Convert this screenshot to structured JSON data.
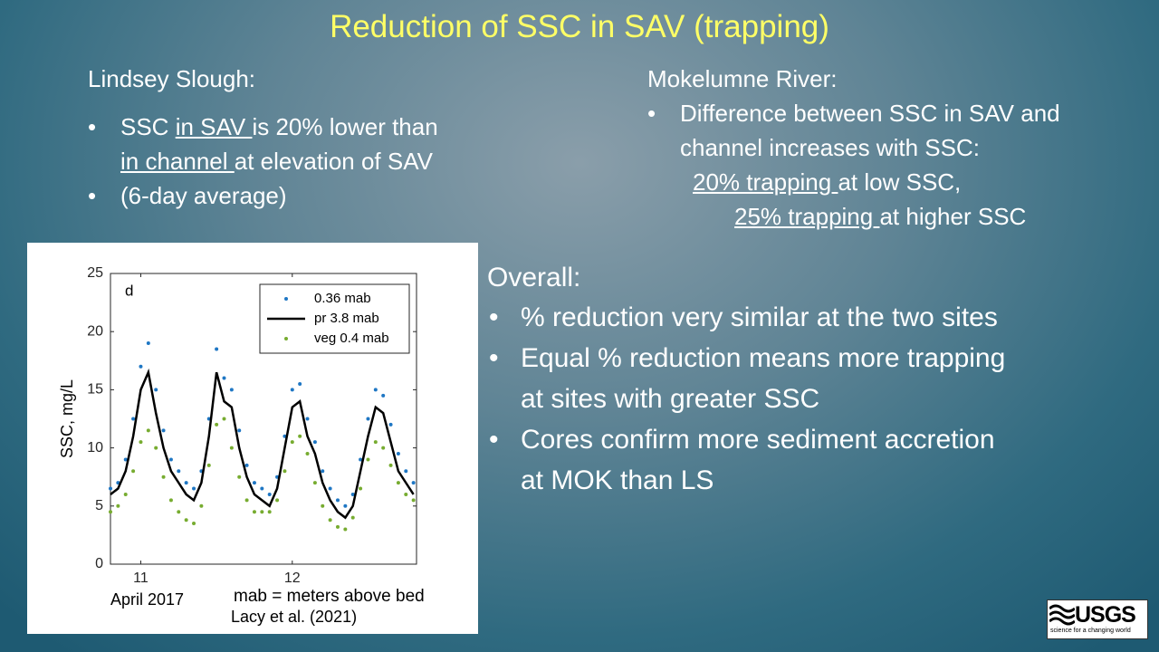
{
  "title": "Reduction of SSC in SAV (trapping)",
  "left": {
    "heading": "Lindsey Slough:",
    "bullets": [
      {
        "lines": [
          [
            {
              "text": "SSC "
            },
            {
              "text": "in SAV ",
              "underline": true
            },
            {
              "text": "is 20% lower than"
            }
          ],
          [
            {
              "text": "in channel ",
              "underline": true
            },
            {
              "text": "at elevation of SAV"
            }
          ]
        ]
      },
      {
        "lines": [
          [
            {
              "text": "(6-day average)"
            }
          ]
        ]
      }
    ]
  },
  "right": {
    "heading": "Mokelumne River:",
    "bullets": [
      {
        "lines": [
          [
            {
              "text": "Difference between SSC in SAV and"
            }
          ],
          [
            {
              "text": "channel increases with SSC:"
            }
          ]
        ]
      }
    ],
    "notes": [
      [
        {
          "text": "20% trapping ",
          "underline": true
        },
        {
          "text": "at low SSC,"
        }
      ],
      [
        {
          "text": "25% trapping ",
          "underline": true
        },
        {
          "text": "at higher SSC"
        }
      ]
    ]
  },
  "overall": {
    "heading": "Overall:",
    "bullets": [
      {
        "lines": [
          "% reduction very similar at the two sites"
        ]
      },
      {
        "lines": [
          "Equal % reduction means more trapping",
          "at sites with greater SSC"
        ]
      },
      {
        "lines": [
          "Cores confirm more sediment accretion",
          "at MOK than LS"
        ]
      }
    ]
  },
  "chart_data": {
    "type": "line",
    "annotation": "d",
    "y_label": "SSC, mg/L",
    "x_label": "April 2017",
    "xlim": [
      10.8,
      12.82
    ],
    "xticks": [
      11,
      12
    ],
    "ylim": [
      0,
      25
    ],
    "yticks": [
      0,
      5,
      10,
      15,
      20,
      25
    ],
    "legend": "upper right",
    "x": [
      10.8,
      10.85,
      10.9,
      10.95,
      11.0,
      11.05,
      11.1,
      11.15,
      11.2,
      11.25,
      11.3,
      11.35,
      11.4,
      11.45,
      11.5,
      11.55,
      11.6,
      11.65,
      11.7,
      11.75,
      11.8,
      11.85,
      11.9,
      11.95,
      12.0,
      12.05,
      12.1,
      12.15,
      12.2,
      12.25,
      12.3,
      12.35,
      12.4,
      12.45,
      12.5,
      12.55,
      12.6,
      12.65,
      12.7,
      12.75,
      12.8
    ],
    "series": [
      {
        "name": "0.36 mab",
        "color": "#1f77c4",
        "style": "markers",
        "values": [
          6.5,
          7,
          9,
          12.5,
          17,
          19,
          15,
          11.5,
          9,
          8,
          7,
          6.5,
          8,
          12.5,
          18.5,
          16,
          15,
          11.5,
          8.5,
          7,
          6.5,
          6,
          7.5,
          11,
          15,
          15.5,
          12.5,
          10.5,
          8,
          6.5,
          5.5,
          5,
          6,
          9,
          12.5,
          15,
          14.5,
          12,
          9.5,
          8,
          7
        ]
      },
      {
        "name": "pr 3.8 mab",
        "color": "#000000",
        "style": "line",
        "values": [
          6,
          6.5,
          8,
          11,
          15,
          16.5,
          13,
          10,
          8,
          7,
          6,
          5.5,
          7,
          11,
          16.5,
          14,
          13.5,
          10,
          7.5,
          6,
          5.5,
          5,
          6.5,
          10,
          13.5,
          14,
          11,
          9.5,
          7,
          5.5,
          4.5,
          4,
          5,
          8,
          11,
          13.5,
          13,
          10.5,
          8,
          7,
          6
        ]
      },
      {
        "name": "veg 0.4 mab",
        "color": "#77ac30",
        "style": "markers",
        "values": [
          4.5,
          5,
          6,
          8,
          10.5,
          11.5,
          10,
          7.5,
          5.5,
          4.5,
          3.8,
          3.5,
          5,
          8.5,
          12,
          12.5,
          10,
          7.5,
          5.5,
          4.5,
          4.5,
          4.5,
          5.5,
          8,
          10.5,
          11,
          9.5,
          7,
          5,
          3.8,
          3.2,
          3,
          4,
          6.5,
          9,
          10.5,
          10,
          8.5,
          7,
          6,
          5.5
        ]
      }
    ]
  },
  "chart_notes": [
    "mab = meters above bed",
    "Lacy et al. (2021)"
  ],
  "logo": {
    "name": "USGS",
    "tagline": "science for a changing world"
  }
}
